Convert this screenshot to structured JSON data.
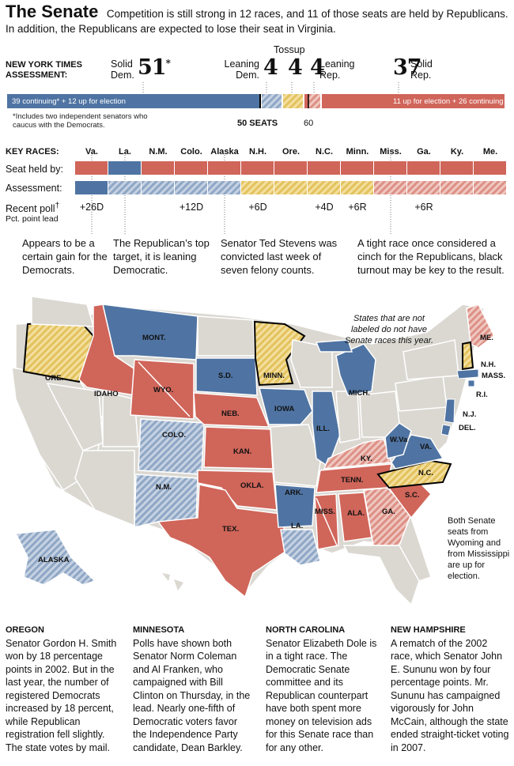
{
  "header": {
    "title": "The Senate",
    "intro": "Competition is still strong in 12 races, and 11 of those seats are held by Republicans. In addition, the Republicans are expected to lose their seat in Virginia."
  },
  "assessment": {
    "label": "NEW YORK TIMES ASSESSMENT:",
    "solid_dem_label": "Solid Dem.",
    "solid_dem_value": "51",
    "solid_dem_mark": "*",
    "leaning_dem_label": "Leaning Dem.",
    "leaning_dem_value": "4",
    "tossup_label": "Tossup",
    "tossup_value": "4",
    "leaning_rep_label": "Leaning Rep.",
    "leaning_rep_value": "4",
    "solid_rep_label": "Solid Rep.",
    "solid_rep_value": "37",
    "dem_bar_text": "39 continuing* + 12 up for election",
    "rep_bar_text": "11 up for election + 26 continuing",
    "footnote": "*Includes two independent senators who caucus with the Democrats.",
    "fifty_label": "50 SEATS",
    "sixty_label": "60"
  },
  "key_races": {
    "label": "KEY RACES:",
    "states": [
      "Va.",
      "La.",
      "N.M.",
      "Colo.",
      "Alaska",
      "N.H.",
      "Ore.",
      "N.C.",
      "Minn.",
      "Miss.",
      "Ga.",
      "Ky.",
      "Me."
    ],
    "seat_held_label": "Seat held by:",
    "assessment_label": "Assessment:",
    "recent_poll_label": "Recent poll",
    "recent_poll_mark": "†",
    "poll_sub_label": "Pct. point lead",
    "seat_held": [
      "R",
      "D",
      "R",
      "R",
      "R",
      "R",
      "R",
      "R",
      "R",
      "R",
      "R",
      "R",
      "R"
    ],
    "ratings": [
      "solid-dem",
      "lean-dem",
      "lean-dem",
      "lean-dem",
      "lean-dem",
      "tossup",
      "tossup",
      "tossup",
      "tossup",
      "lean-rep",
      "lean-rep",
      "lean-rep",
      "lean-rep"
    ],
    "polls": [
      {
        "state": "Va.",
        "value": "+26D"
      },
      {
        "state": "Colo.",
        "value": "+12D"
      },
      {
        "state": "N.H.",
        "value": "+6D"
      },
      {
        "state": "N.C.",
        "value": "+4D"
      },
      {
        "state": "Minn.",
        "value": "+6R"
      },
      {
        "state": "Ga.",
        "value": "+6R"
      }
    ],
    "notes": [
      "Appears to be a certain gain for the Democrats.",
      "The Republican’s top target, it is leaning Democratic.",
      "Senator Ted Stevens was convicted last week of seven felony counts.",
      "A tight race once considered a cinch for the Republicans, black turnout may be key to the result."
    ]
  },
  "map": {
    "unlabeled_note": "States that are not labeled do not have Senate races this year.",
    "mississippi_note": "Both Senate seats from Wyoming and from Mississippi are up for election.",
    "labels": [
      "ORE.",
      "IDAHO",
      "MONT.",
      "WYO.",
      "COLO.",
      "N.M.",
      "S.D.",
      "NEB.",
      "KAN.",
      "OKLA.",
      "TEX.",
      "MINN.",
      "IOWA",
      "ILL.",
      "ARK.",
      "LA.",
      "MISS.",
      "ALA.",
      "GA.",
      "TENN.",
      "KY.",
      "S.C.",
      "N.C.",
      "VA.",
      "W.Va",
      "MICH.",
      "N.J.",
      "DEL.",
      "ME.",
      "N.H.",
      "MASS.",
      "R.I.",
      "ALASKA"
    ]
  },
  "sections": [
    {
      "title": "OREGON",
      "text": "Senator Gordon H. Smith won by 18 percentage points in 2002. But in the last year, the number of registered Democrats increased by 18 percent, while Republican registration fell slightly. The state votes by mail."
    },
    {
      "title": "MINNESOTA",
      "text": "Polls have shown both Senator Norm Coleman and Al Franken, who campaigned with Bill Clinton on Thursday, in the lead. Nearly one-fifth of Democratic voters favor the Independence Party candidate, Dean Barkley."
    },
    {
      "title": "NORTH CAROLINA",
      "text": "Senator Elizabeth Dole is in a tight race. The Democratic Senate committee and its Republican counterpart have both spent more money on television ads for this Senate race than for any other."
    },
    {
      "title": "NEW HAMPSHIRE",
      "text": "A rematch of the 2002 race, which Senator John E. Sununu won by four percentage points. Mr. Sununu has campaigned vigorously for John McCain, although the state ended straight-ticket voting in 2007."
    }
  ],
  "colors": {
    "dem": "#4f74a3",
    "rep": "#d0655a",
    "tossup": "#e8cd74",
    "lean_dem": "#a9bbd3",
    "lean_rep": "#e6aaa3",
    "other": "#dbd8d2"
  }
}
